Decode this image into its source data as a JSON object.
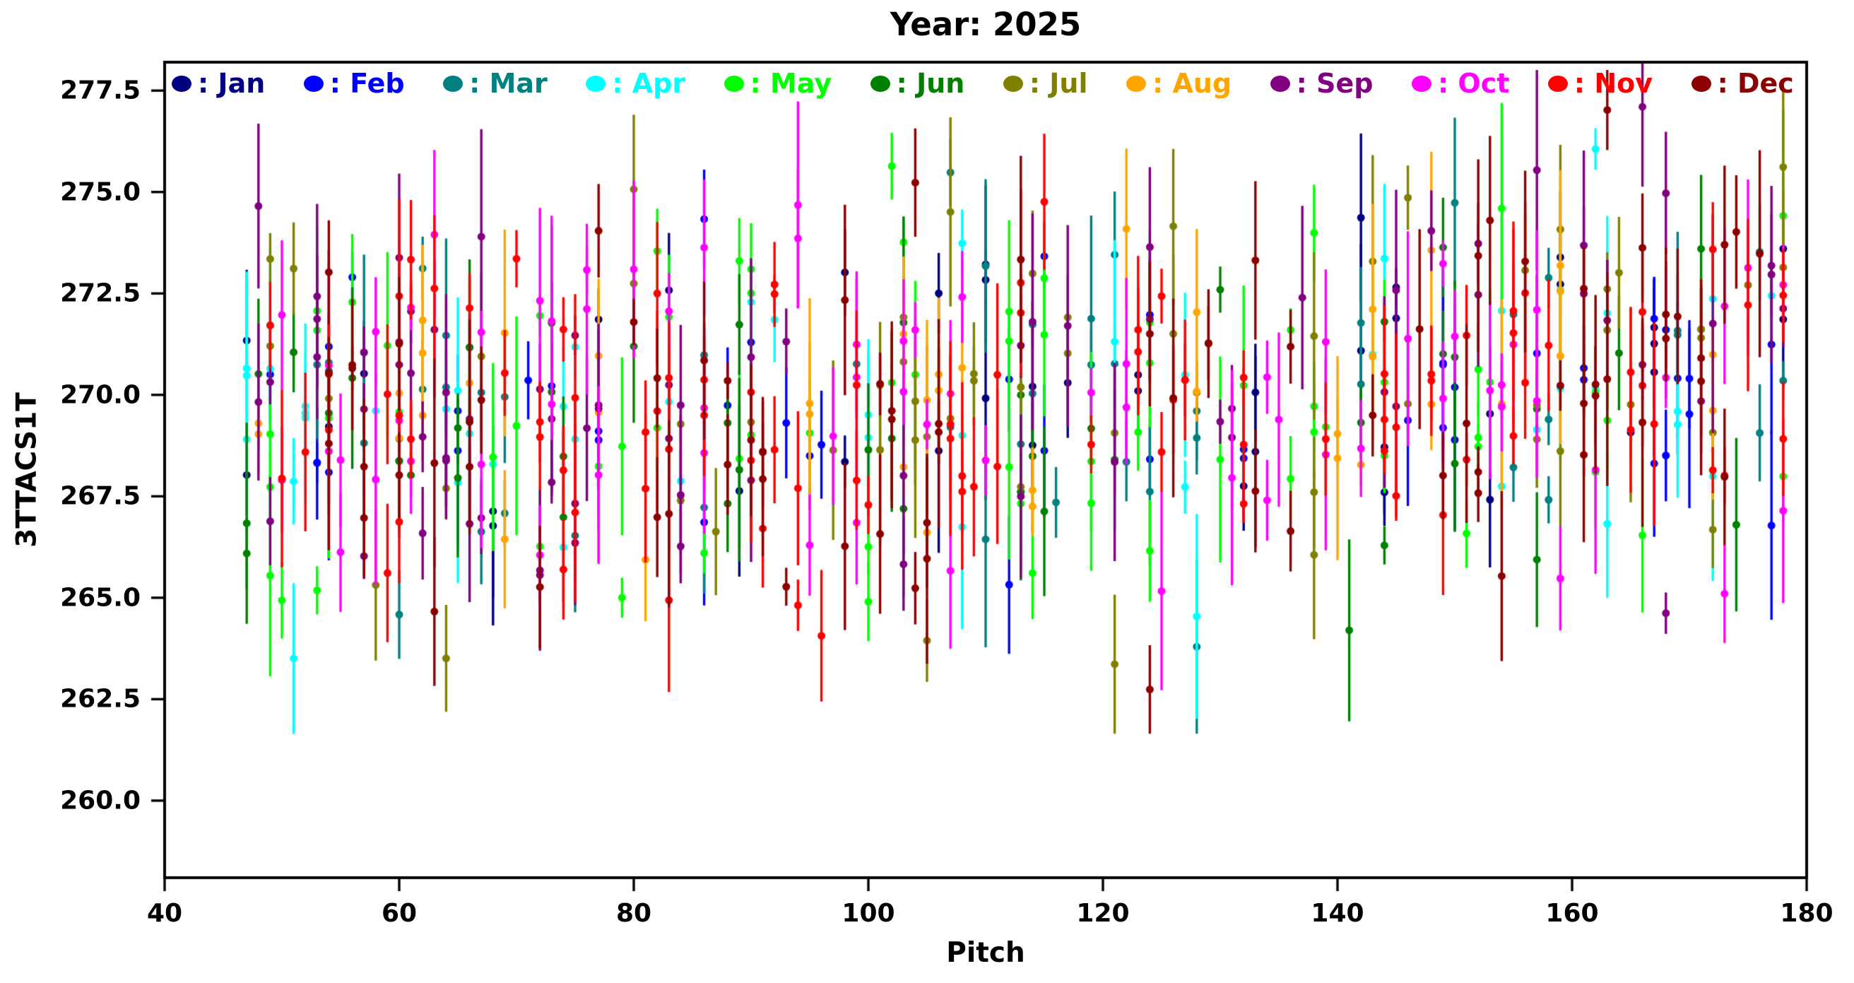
{
  "chart_data": {
    "type": "scatter",
    "subtype": "errorbar-scatter",
    "title": "Year: 2025",
    "xlabel": "Pitch",
    "ylabel": "3TTACS1T",
    "grid": false,
    "legend_position": "upper-inside-row",
    "xlim": [
      40,
      180
    ],
    "ylim": [
      258.1,
      278.2
    ],
    "xticks": [
      40,
      60,
      80,
      100,
      120,
      140,
      160,
      180
    ],
    "xtick_labels": [
      "40",
      "60",
      "80",
      "100",
      "120",
      "140",
      "160",
      "180"
    ],
    "yticks": [
      260.0,
      262.5,
      265.0,
      267.5,
      270.0,
      272.5,
      275.0,
      277.5
    ],
    "ytick_labels": [
      "260.0",
      "262.5",
      "265.0",
      "267.5",
      "270.0",
      "272.5",
      "275.0",
      "277.5"
    ],
    "x_data_range": [
      47,
      178
    ],
    "y_data_range": [
      262.3,
      277.1
    ],
    "error_range": [
      0.45,
      2.7
    ],
    "axis_color": "#000000",
    "background_color": "#ffffff",
    "months": [
      {
        "name": "Jan",
        "legend_label": ": Jan",
        "color": "#000080",
        "weight": 0.7,
        "right_boost": 1.0
      },
      {
        "name": "Feb",
        "legend_label": ": Feb",
        "color": "#0000ff",
        "weight": 0.75,
        "right_boost": 1.0
      },
      {
        "name": "Mar",
        "legend_label": ": Mar",
        "color": "#008080",
        "weight": 0.8,
        "right_boost": 1.0
      },
      {
        "name": "Apr",
        "legend_label": ": Apr",
        "color": "#00ffff",
        "weight": 0.8,
        "right_boost": 1.0
      },
      {
        "name": "May",
        "legend_label": ": May",
        "color": "#00ff00",
        "weight": 0.95,
        "right_boost": 1.0
      },
      {
        "name": "Jun",
        "legend_label": ": Jun",
        "color": "#008000",
        "weight": 0.7,
        "right_boost": 1.0
      },
      {
        "name": "Jul",
        "legend_label": ": Jul",
        "color": "#808000",
        "weight": 0.8,
        "right_boost": 1.0
      },
      {
        "name": "Aug",
        "legend_label": ": Aug",
        "color": "#ffa500",
        "weight": 0.8,
        "right_boost": 1.0
      },
      {
        "name": "Sep",
        "legend_label": ": Sep",
        "color": "#800080",
        "weight": 1.1,
        "right_boost": 1.2
      },
      {
        "name": "Oct",
        "legend_label": ": Oct",
        "color": "#ff00ff",
        "weight": 1.2,
        "right_boost": 1.2
      },
      {
        "name": "Nov",
        "legend_label": ": Nov",
        "color": "#ff0000",
        "weight": 1.45,
        "right_boost": 1.3
      },
      {
        "name": "Dec",
        "legend_label": ": Dec",
        "color": "#8b0000",
        "weight": 1.35,
        "right_boost": 1.3
      }
    ],
    "generator": {
      "seed": 20250427,
      "column_month_prob": 0.3,
      "extra_point_prob1": 0.5,
      "extra_point_prob2": 0.22,
      "y_mean": 269.6,
      "y_sd": 2.35,
      "y_mean_right": 270.8,
      "right_region_start": 143,
      "sparse_region": [
        134,
        142
      ],
      "sparse_factor": 0.5,
      "y_dot_min": 262.3,
      "y_dot_max": 277.1,
      "err_min": 0.45,
      "err_max": 2.7,
      "bar_floor": 261.65
    },
    "style": {
      "marker_radius": 5.5,
      "errorbar_width": 3.4,
      "spine_width": 4,
      "tick_length": 19,
      "tick_width": 3.4
    }
  }
}
